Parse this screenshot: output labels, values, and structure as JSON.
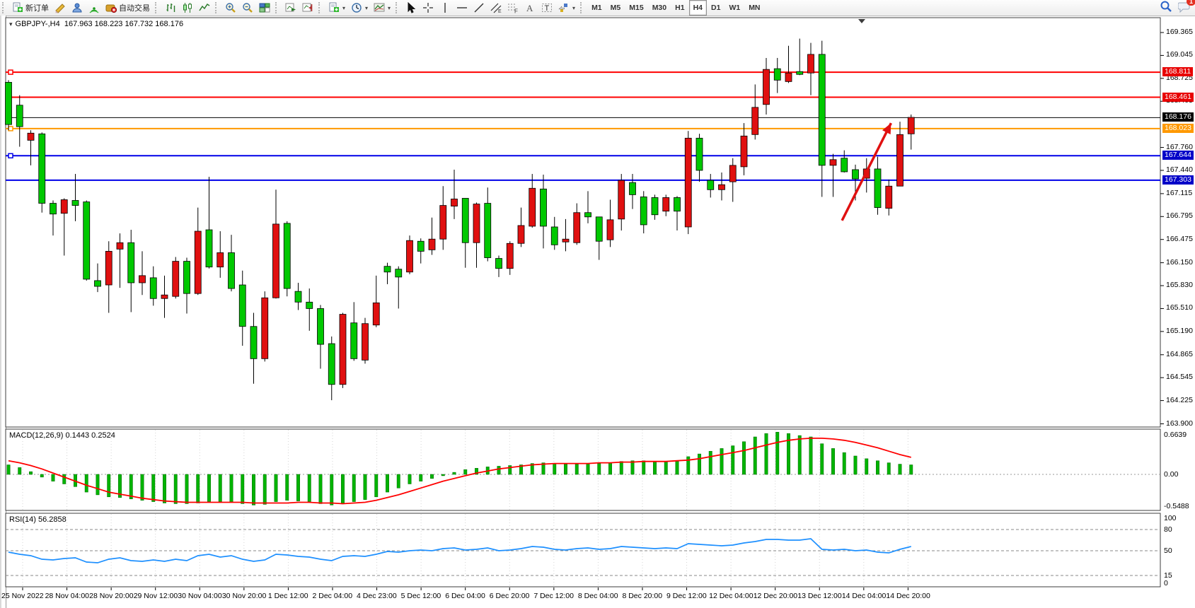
{
  "window": {
    "app": "MetaTrader"
  },
  "toolbar": {
    "labels": {
      "new_order": "新订单",
      "auto_trading": "自动交易"
    },
    "groups": [
      [
        {
          "name": "new-order",
          "icon": "doc-plus",
          "label_key": "new_order"
        },
        {
          "name": "crayon",
          "icon": "crayon"
        },
        {
          "name": "publisher",
          "icon": "person"
        },
        {
          "name": "signals",
          "icon": "signal"
        },
        {
          "name": "auto-trading",
          "icon": "autotrade",
          "label_key": "auto_trading"
        }
      ],
      [
        {
          "name": "bar-chart-mode",
          "icon": "bars"
        },
        {
          "name": "candlestick-mode",
          "icon": "candles"
        },
        {
          "name": "line-chart-mode",
          "icon": "linechart"
        }
      ],
      [
        {
          "name": "zoom-in",
          "icon": "zoom-in"
        },
        {
          "name": "zoom-out",
          "icon": "zoom-out"
        },
        {
          "name": "tile-windows",
          "icon": "grid"
        }
      ],
      [
        {
          "name": "auto-scroll",
          "icon": "autoscroll"
        },
        {
          "name": "chart-shift",
          "icon": "shift"
        }
      ],
      [
        {
          "name": "profiles-menu",
          "icon": "doc-plus",
          "dropdown": true
        },
        {
          "name": "period-menu",
          "icon": "clock",
          "dropdown": true
        },
        {
          "name": "templates-menu",
          "icon": "template",
          "dropdown": true
        }
      ],
      [
        {
          "name": "cursor-tool",
          "icon": "cursor"
        },
        {
          "name": "crosshair-tool",
          "icon": "crosshair"
        },
        {
          "name": "vline-tool",
          "icon": "vline"
        },
        {
          "name": "hline-tool",
          "icon": "hline"
        },
        {
          "name": "trendline-tool",
          "icon": "trendline"
        },
        {
          "name": "channel-tool",
          "icon": "channel"
        },
        {
          "name": "fibonacci-tool",
          "icon": "fibo"
        },
        {
          "name": "text-tool",
          "icon": "text"
        },
        {
          "name": "label-tool",
          "icon": "label"
        },
        {
          "name": "shapes-menu",
          "icon": "shapes",
          "dropdown": true
        }
      ]
    ],
    "timeframes": [
      "M1",
      "M5",
      "M15",
      "M30",
      "H1",
      "H4",
      "D1",
      "W1",
      "MN"
    ],
    "active_timeframe": "H4",
    "right": [
      {
        "name": "search",
        "icon": "search"
      },
      {
        "name": "notifications",
        "icon": "chat",
        "badge": "1"
      }
    ],
    "notification_count": "1"
  },
  "chart": {
    "title": "GBPJPY-,H4",
    "ohlc": "167.963 168.223 167.732 168.176",
    "dropdown_icon": "▾"
  },
  "indicators": {
    "macd_label": "MACD(12,26,9) 0.1443 0.2524",
    "rsi_label": "RSI(14) 56.2858"
  },
  "chart_data": [
    {
      "type": "candlestick",
      "symbol": "GBPJPY-",
      "timeframe": "H4",
      "open": 167.963,
      "high": 168.223,
      "low": 167.732,
      "close": 168.176,
      "ylim": [
        163.9,
        169.365
      ],
      "grid": false,
      "colors": {
        "up_body": "#E01010",
        "down_body": "#00C800",
        "outline": "#000000",
        "bid_line": "#000000",
        "arrow": "#E01010"
      },
      "price_ticks": [
        "169.365",
        "169.045",
        "168.725",
        "168.405",
        "167.760",
        "167.440",
        "167.115",
        "166.795",
        "166.475",
        "166.150",
        "165.830",
        "165.510",
        "165.190",
        "164.865",
        "164.545",
        "164.225",
        "163.900"
      ],
      "price_tick_values": [
        169.365,
        169.045,
        168.725,
        168.405,
        167.76,
        167.44,
        167.115,
        166.795,
        166.475,
        166.15,
        165.83,
        165.51,
        165.19,
        164.865,
        164.545,
        164.225,
        163.9
      ],
      "price_lines": [
        {
          "price": 168.811,
          "label": "168.811",
          "color": "#FF0000",
          "width": 2,
          "badge_bg": "#E80000",
          "anchor": true
        },
        {
          "price": 168.461,
          "label": "168.461",
          "color": "#FF0000",
          "width": 2,
          "badge_bg": "#E80000",
          "anchor": false
        },
        {
          "price": 168.176,
          "label": "168.176",
          "color": "#000000",
          "width": 1,
          "badge_bg": "#000000",
          "anchor": false
        },
        {
          "price": 168.023,
          "label": "168.023",
          "color": "#FF9900",
          "width": 2,
          "badge_bg": "#FF9900",
          "anchor": true
        },
        {
          "price": 167.644,
          "label": "167.644",
          "color": "#0000E8",
          "width": 2,
          "badge_bg": "#0000C8",
          "anchor": true
        },
        {
          "price": 167.303,
          "label": "167.303",
          "color": "#0000E8",
          "width": 2,
          "badge_bg": "#0000C8",
          "anchor": false
        }
      ],
      "x_labels": [
        "25 Nov 2022",
        "28 Nov 04:00",
        "28 Nov 20:00",
        "29 Nov 12:00",
        "30 Nov 04:00",
        "30 Nov 20:00",
        "1 Dec 12:00",
        "2 Dec 04:00",
        "4 Dec 23:00",
        "5 Dec 12:00",
        "6 Dec 04:00",
        "6 Dec 20:00",
        "7 Dec 12:00",
        "8 Dec 04:00",
        "8 Dec 20:00",
        "9 Dec 12:00",
        "12 Dec 04:00",
        "12 Dec 20:00",
        "13 Dec 12:00",
        "14 Dec 04:00",
        "14 Dec 20:00"
      ],
      "candles": [
        [
          "g",
          168.08,
          168.67,
          168.0,
          168.7
        ],
        [
          "g",
          168.05,
          168.35,
          167.77,
          168.49
        ],
        [
          "r",
          167.86,
          167.96,
          167.51,
          168.0
        ],
        [
          "g",
          166.98,
          167.95,
          166.85,
          167.97
        ],
        [
          "g",
          166.83,
          166.98,
          166.53,
          167.02
        ],
        [
          "r",
          166.84,
          167.03,
          166.25,
          167.05
        ],
        [
          "g",
          166.95,
          167.02,
          166.73,
          167.39
        ],
        [
          "g",
          165.92,
          167.0,
          165.9,
          167.02
        ],
        [
          "g",
          165.82,
          165.9,
          165.74,
          166.14
        ],
        [
          "r",
          165.84,
          166.31,
          165.45,
          166.45
        ],
        [
          "r",
          166.34,
          166.43,
          165.8,
          166.56
        ],
        [
          "g",
          165.87,
          166.43,
          165.46,
          166.61
        ],
        [
          "r",
          165.87,
          165.97,
          165.7,
          166.31
        ],
        [
          "g",
          165.65,
          165.94,
          165.55,
          166.1
        ],
        [
          "r",
          165.65,
          165.7,
          165.38,
          165.97
        ],
        [
          "r",
          165.68,
          166.17,
          165.65,
          166.23
        ],
        [
          "g",
          165.72,
          166.17,
          165.44,
          166.22
        ],
        [
          "r",
          165.72,
          166.59,
          165.7,
          166.92
        ],
        [
          "g",
          166.09,
          166.61,
          166.07,
          167.35
        ],
        [
          "r",
          166.09,
          166.29,
          165.94,
          166.59
        ],
        [
          "g",
          165.79,
          166.29,
          165.75,
          166.54
        ],
        [
          "g",
          165.26,
          165.84,
          164.99,
          166.04
        ],
        [
          "g",
          164.81,
          165.26,
          164.46,
          165.45
        ],
        [
          "r",
          164.81,
          165.66,
          164.77,
          165.75
        ],
        [
          "r",
          165.66,
          166.69,
          165.65,
          167.17
        ],
        [
          "g",
          165.79,
          166.7,
          165.68,
          166.73
        ],
        [
          "g",
          165.6,
          165.75,
          165.49,
          165.87
        ],
        [
          "g",
          165.51,
          165.6,
          165.2,
          165.79
        ],
        [
          "g",
          165.01,
          165.51,
          164.67,
          165.56
        ],
        [
          "g",
          164.45,
          165.02,
          164.23,
          165.12
        ],
        [
          "r",
          164.45,
          165.43,
          164.4,
          165.45
        ],
        [
          "g",
          164.81,
          165.31,
          164.78,
          165.6
        ],
        [
          "r",
          164.79,
          165.3,
          164.74,
          165.38
        ],
        [
          "r",
          165.28,
          165.59,
          165.25,
          165.97
        ],
        [
          "g",
          166.02,
          166.1,
          165.85,
          166.15
        ],
        [
          "g",
          165.95,
          166.06,
          165.51,
          166.1
        ],
        [
          "r",
          166.02,
          166.46,
          165.99,
          166.53
        ],
        [
          "g",
          166.31,
          166.45,
          166.14,
          166.49
        ],
        [
          "r",
          166.33,
          166.48,
          166.26,
          166.78
        ],
        [
          "r",
          166.48,
          166.95,
          166.33,
          167.22
        ],
        [
          "r",
          166.94,
          167.04,
          166.76,
          167.45
        ],
        [
          "g",
          166.43,
          167.05,
          166.08,
          167.05
        ],
        [
          "r",
          166.43,
          166.97,
          166.08,
          166.99
        ],
        [
          "g",
          166.22,
          166.98,
          166.17,
          167.2
        ],
        [
          "g",
          166.07,
          166.21,
          165.95,
          166.25
        ],
        [
          "r",
          166.07,
          166.42,
          165.98,
          166.45
        ],
        [
          "r",
          166.42,
          166.67,
          166.37,
          166.92
        ],
        [
          "r",
          166.66,
          167.19,
          166.64,
          167.39
        ],
        [
          "g",
          166.66,
          167.18,
          166.35,
          167.38
        ],
        [
          "g",
          166.4,
          166.65,
          166.33,
          166.79
        ],
        [
          "r",
          166.44,
          166.48,
          166.31,
          166.76
        ],
        [
          "r",
          166.43,
          166.85,
          166.4,
          166.98
        ],
        [
          "g",
          166.79,
          166.85,
          166.7,
          167.15
        ],
        [
          "g",
          166.45,
          166.79,
          166.19,
          166.79
        ],
        [
          "r",
          166.47,
          166.75,
          166.37,
          167.03
        ],
        [
          "r",
          166.76,
          167.3,
          166.6,
          167.39
        ],
        [
          "g",
          167.1,
          167.27,
          166.9,
          167.39
        ],
        [
          "g",
          166.68,
          167.07,
          166.56,
          167.15
        ],
        [
          "g",
          166.82,
          167.06,
          166.75,
          167.1
        ],
        [
          "r",
          166.87,
          167.06,
          166.8,
          167.1
        ],
        [
          "g",
          166.87,
          167.06,
          166.6,
          167.08
        ],
        [
          "r",
          166.65,
          167.89,
          166.55,
          167.99
        ],
        [
          "g",
          167.44,
          167.89,
          167.28,
          167.95
        ],
        [
          "g",
          167.17,
          167.3,
          167.06,
          167.39
        ],
        [
          "r",
          167.17,
          167.24,
          167.02,
          167.41
        ],
        [
          "r",
          167.28,
          167.51,
          167.0,
          167.61
        ],
        [
          "r",
          167.49,
          167.92,
          167.37,
          168.1
        ],
        [
          "r",
          167.94,
          168.32,
          167.87,
          168.64
        ],
        [
          "r",
          168.36,
          168.85,
          168.22,
          169.01
        ],
        [
          "g",
          168.7,
          168.86,
          168.52,
          169.01
        ],
        [
          "r",
          168.68,
          168.8,
          168.66,
          169.18
        ],
        [
          "g",
          168.78,
          168.82,
          168.77,
          169.28
        ],
        [
          "r",
          168.8,
          169.06,
          168.49,
          169.22
        ],
        [
          "g",
          167.51,
          169.06,
          167.07,
          169.25
        ],
        [
          "r",
          167.51,
          167.59,
          167.07,
          167.67
        ],
        [
          "g",
          167.42,
          167.61,
          167.41,
          167.72
        ],
        [
          "g",
          167.32,
          167.45,
          167.02,
          167.52
        ],
        [
          "r",
          167.33,
          167.46,
          167.13,
          167.61
        ],
        [
          "g",
          166.92,
          167.46,
          166.82,
          167.63
        ],
        [
          "r",
          166.91,
          167.22,
          166.81,
          167.31
        ],
        [
          "r",
          167.22,
          167.94,
          167.22,
          168.12
        ],
        [
          "r",
          167.95,
          168.18,
          167.73,
          168.22
        ]
      ],
      "annotations": [
        {
          "type": "arrow",
          "color": "#E01010",
          "from_price": 166.74,
          "to_price": 168.1,
          "from_bar": 74.8,
          "to_bar": 79.2,
          "note": "red up arrow pointing to 168.0 zone"
        }
      ]
    },
    {
      "type": "bar",
      "name": "MACD(12,26,9)",
      "current_macd": 0.1443,
      "current_signal": 0.2524,
      "scale_labels": [
        "0.6639",
        "0.00",
        "-0.5488"
      ],
      "scale_values": [
        0.6639,
        0.0,
        -0.5488
      ],
      "bar_color": "#00B400",
      "signal_color": "#FF0000",
      "values": [
        0.14,
        0.1,
        0.04,
        -0.04,
        -0.1,
        -0.14,
        -0.18,
        -0.26,
        -0.3,
        -0.33,
        -0.34,
        -0.36,
        -0.38,
        -0.4,
        -0.42,
        -0.43,
        -0.43,
        -0.42,
        -0.4,
        -0.4,
        -0.41,
        -0.43,
        -0.45,
        -0.44,
        -0.4,
        -0.38,
        -0.39,
        -0.4,
        -0.43,
        -0.45,
        -0.43,
        -0.4,
        -0.37,
        -0.33,
        -0.26,
        -0.2,
        -0.14,
        -0.1,
        -0.06,
        -0.02,
        0.03,
        0.07,
        0.09,
        0.11,
        0.12,
        0.13,
        0.14,
        0.16,
        0.17,
        0.16,
        0.15,
        0.15,
        0.16,
        0.16,
        0.17,
        0.19,
        0.2,
        0.2,
        0.19,
        0.19,
        0.2,
        0.26,
        0.3,
        0.34,
        0.38,
        0.42,
        0.48,
        0.55,
        0.6,
        0.62,
        0.6,
        0.57,
        0.55,
        0.45,
        0.38,
        0.32,
        0.27,
        0.23,
        0.2,
        0.17,
        0.15,
        0.14
      ],
      "signal": [
        0.2,
        0.17,
        0.13,
        0.08,
        0.02,
        -0.04,
        -0.1,
        -0.16,
        -0.21,
        -0.26,
        -0.29,
        -0.32,
        -0.35,
        -0.37,
        -0.39,
        -0.4,
        -0.41,
        -0.41,
        -0.41,
        -0.41,
        -0.41,
        -0.41,
        -0.42,
        -0.42,
        -0.42,
        -0.42,
        -0.41,
        -0.41,
        -0.42,
        -0.42,
        -0.43,
        -0.42,
        -0.41,
        -0.38,
        -0.34,
        -0.3,
        -0.25,
        -0.2,
        -0.15,
        -0.1,
        -0.06,
        -0.02,
        0.02,
        0.05,
        0.08,
        0.1,
        0.12,
        0.14,
        0.15,
        0.16,
        0.16,
        0.16,
        0.16,
        0.17,
        0.17,
        0.18,
        0.18,
        0.19,
        0.19,
        0.19,
        0.2,
        0.21,
        0.23,
        0.26,
        0.29,
        0.32,
        0.35,
        0.39,
        0.43,
        0.47,
        0.5,
        0.52,
        0.53,
        0.53,
        0.52,
        0.5,
        0.47,
        0.43,
        0.39,
        0.34,
        0.29,
        0.25
      ]
    },
    {
      "type": "line",
      "name": "RSI(14)",
      "current": 56.2858,
      "range": [
        0,
        100
      ],
      "levels": [
        80,
        50,
        15
      ],
      "scale_labels": [
        "100",
        "80",
        "50",
        "15",
        "0"
      ],
      "scale_values": [
        100,
        80,
        50,
        15,
        0
      ],
      "line_color": "#1E90FF",
      "values": [
        48,
        45,
        43,
        38,
        37,
        39,
        40,
        34,
        33,
        38,
        40,
        36,
        35,
        37,
        35,
        38,
        36,
        43,
        45,
        41,
        43,
        38,
        35,
        37,
        45,
        44,
        42,
        41,
        38,
        36,
        42,
        43,
        42,
        45,
        49,
        48,
        50,
        51,
        50,
        53,
        54,
        51,
        52,
        54,
        50,
        51,
        53,
        56,
        55,
        52,
        51,
        53,
        54,
        52,
        53,
        56,
        55,
        54,
        53,
        54,
        53,
        60,
        59,
        58,
        57,
        58,
        61,
        63,
        66,
        66,
        65,
        65,
        67,
        52,
        51,
        52,
        50,
        51,
        48,
        47,
        52,
        56
      ]
    }
  ]
}
